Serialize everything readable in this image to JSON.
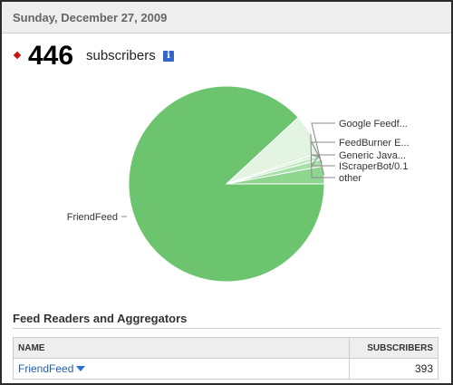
{
  "header": {
    "date": "Sunday, December 27, 2009"
  },
  "summary": {
    "count": "446",
    "label": "subscribers",
    "info_icon": "i",
    "accent_color": "#cc1111"
  },
  "chart_data": {
    "type": "pie",
    "title": "",
    "slices": [
      {
        "label": "FriendFeed",
        "value": 393,
        "color": "#6cc56e"
      },
      {
        "label": "Google Feedf...",
        "value": 13,
        "color": "#8ed58f"
      },
      {
        "label": "FeedBurner E...",
        "value": 5,
        "color": "#a9dfa9"
      },
      {
        "label": "Generic Java...",
        "value": 3,
        "color": "#c2e8c2"
      },
      {
        "label": "IScraperBot/0.1",
        "value": 2,
        "color": "#d2eed2"
      },
      {
        "label": "other",
        "value": 30,
        "color": "#e3f4e3"
      }
    ]
  },
  "section": {
    "title": "Feed Readers and Aggregators"
  },
  "table": {
    "columns": {
      "name": "NAME",
      "subscribers": "SUBSCRIBERS"
    },
    "rows": [
      {
        "name": "FriendFeed",
        "subscribers": "393"
      }
    ]
  }
}
